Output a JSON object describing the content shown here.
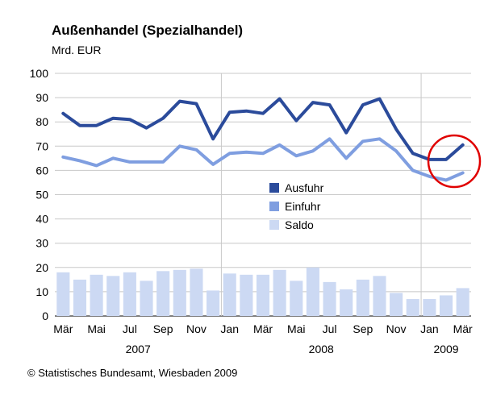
{
  "chart_data": {
    "type": "bar+line",
    "title": "Außenhandel (Spezialhandel)",
    "unit": "Mrd. EUR",
    "ylim": [
      0,
      100
    ],
    "yticks": [
      0,
      10,
      20,
      30,
      40,
      50,
      60,
      70,
      80,
      90,
      100
    ],
    "x": [
      "2007-03",
      "2007-04",
      "2007-05",
      "2007-06",
      "2007-07",
      "2007-08",
      "2007-09",
      "2007-10",
      "2007-11",
      "2007-12",
      "2008-01",
      "2008-02",
      "2008-03",
      "2008-04",
      "2008-05",
      "2008-06",
      "2008-07",
      "2008-08",
      "2008-09",
      "2008-10",
      "2008-11",
      "2008-12",
      "2009-01",
      "2009-02",
      "2009-03"
    ],
    "xtick_labels": [
      "Mär",
      "Mai",
      "Jul",
      "Sep",
      "Nov",
      "Jan",
      "Mär",
      "Mai",
      "Jul",
      "Sep",
      "Nov",
      "Jan",
      "Mär"
    ],
    "year_labels": [
      "2007",
      "2008",
      "2009"
    ],
    "grid": "y",
    "legend_position": "center",
    "series": [
      {
        "name": "Ausfuhr",
        "type": "line",
        "color": "#2b4b9b",
        "values": [
          83.5,
          78.5,
          78.5,
          81.5,
          81,
          77.5,
          81.5,
          88.5,
          87.5,
          73,
          84,
          84.5,
          83.5,
          89.5,
          80.5,
          88,
          87,
          75.5,
          87,
          89.5,
          77,
          67,
          64.5,
          64.5,
          70.5
        ]
      },
      {
        "name": "Einfuhr",
        "type": "line",
        "color": "#7f9ee0",
        "values": [
          65.5,
          64,
          62,
          65,
          63.5,
          63.5,
          63.5,
          70,
          68.5,
          62.5,
          67,
          67.5,
          67,
          70.5,
          66,
          68,
          73,
          65,
          72,
          73,
          68,
          60,
          57.5,
          56,
          59
        ]
      },
      {
        "name": "Saldo",
        "type": "bar",
        "color": "#ccd9f3",
        "values": [
          18,
          15,
          17,
          16.5,
          18,
          14.5,
          18.5,
          19,
          19.5,
          10.5,
          17.5,
          17,
          17,
          19,
          14.5,
          20,
          14,
          11,
          15,
          16.5,
          9.5,
          7,
          7,
          8.5,
          11.5
        ]
      }
    ]
  },
  "footer": "© Statistisches Bundesamt, Wiesbaden 2009",
  "annotation": {
    "color": "#e00000"
  }
}
